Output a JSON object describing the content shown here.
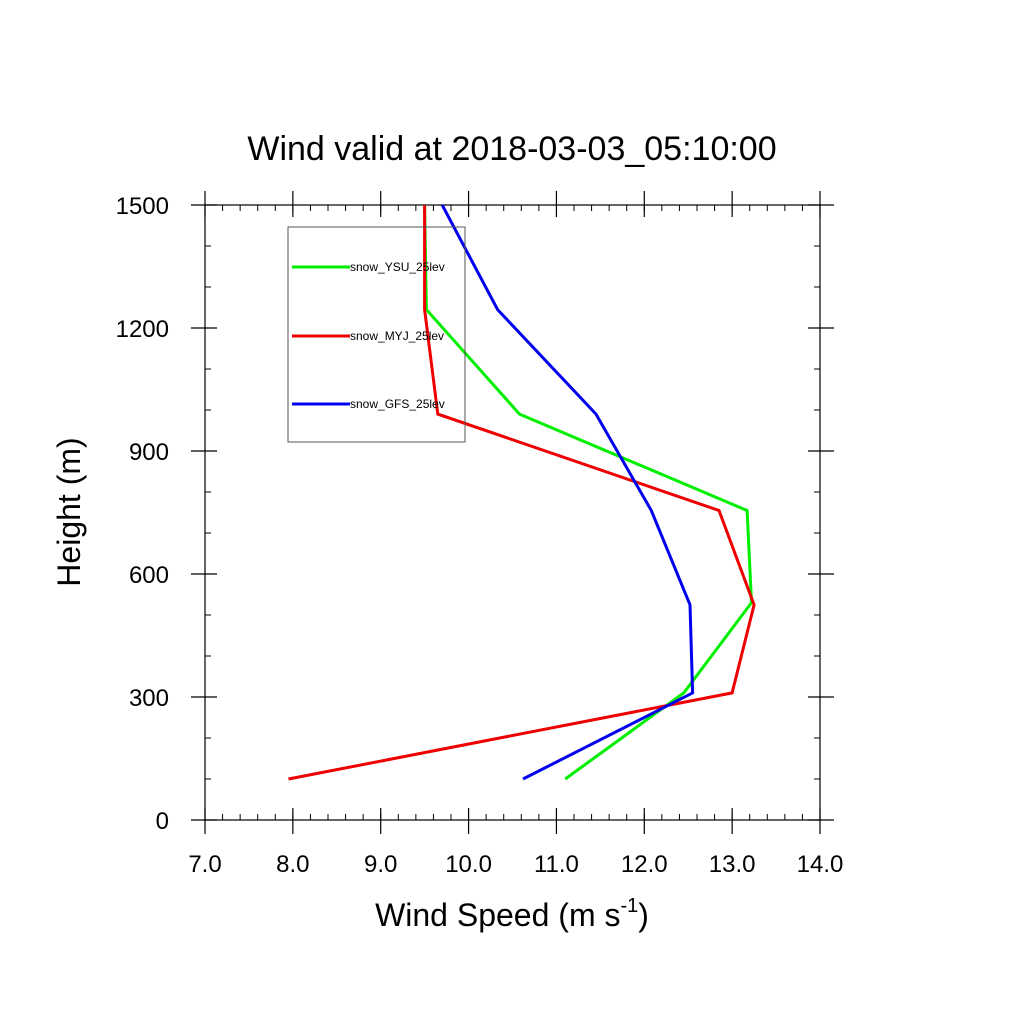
{
  "chart_data": {
    "type": "line",
    "title": "Wind valid at 2018-03-03_05:10:00",
    "xlabel": "Wind Speed (m s",
    "xlabel_exp": "-1",
    "xlabel_close": ")",
    "ylabel": "Height (m)",
    "xlim": [
      7.0,
      14.0
    ],
    "ylim": [
      0,
      1500
    ],
    "xticks": [
      "7.0",
      "8.0",
      "9.0",
      "10.0",
      "11.0",
      "12.0",
      "13.0",
      "14.0"
    ],
    "yticks": [
      "0",
      "300",
      "600",
      "900",
      "1200",
      "1500"
    ],
    "x_minor_step": 0.2,
    "y_minor_step": 100,
    "legend_placement": "top-left",
    "series": [
      {
        "name": "snow_YSU_25lev",
        "color": "#00ee00",
        "points": [
          [
            11.1,
            100
          ],
          [
            12.45,
            310
          ],
          [
            13.22,
            530
          ],
          [
            13.17,
            755
          ],
          [
            10.58,
            990
          ],
          [
            9.52,
            1245
          ],
          [
            9.5,
            1500
          ]
        ]
      },
      {
        "name": "snow_MYJ_25lev",
        "color": "#ee0000",
        "points": [
          [
            7.95,
            100
          ],
          [
            13.0,
            310
          ],
          [
            13.25,
            525
          ],
          [
            12.85,
            755
          ],
          [
            9.65,
            990
          ],
          [
            9.5,
            1245
          ],
          [
            9.5,
            1500
          ]
        ]
      },
      {
        "name": "snow_GFS_25lev",
        "color": "#0000ee",
        "points": [
          [
            10.62,
            100
          ],
          [
            12.55,
            310
          ],
          [
            12.52,
            525
          ],
          [
            12.08,
            755
          ],
          [
            11.45,
            990
          ],
          [
            10.33,
            1245
          ],
          [
            9.7,
            1500
          ]
        ]
      }
    ]
  }
}
